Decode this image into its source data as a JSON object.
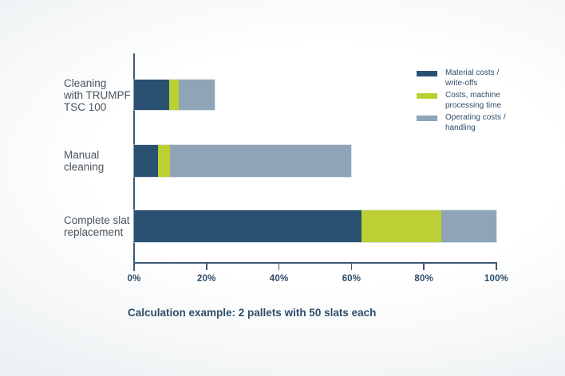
{
  "chart_data": {
    "type": "bar",
    "orientation": "horizontal-stacked",
    "unit": "%",
    "title": "",
    "caption": "Calculation example: 2 pallets with 50 slats each",
    "categories": [
      "Cleaning with TRUMPF TSC 100",
      "Manual cleaning",
      "Complete slat replacement"
    ],
    "category_lines": [
      [
        "Cleaning",
        "with TRUMPF",
        "TSC 100"
      ],
      [
        "Manual",
        "cleaning"
      ],
      [
        "Complete slat",
        "replacement"
      ]
    ],
    "series": [
      {
        "name": "Material costs / write-offs",
        "color": "#2b5172",
        "values": [
          9.7,
          6.6,
          62.8
        ]
      },
      {
        "name": "Costs, machine processing time",
        "color": "#bdd033",
        "values": [
          2.7,
          3.3,
          22.0
        ]
      },
      {
        "name": "Operating costs / handling",
        "color": "#8fa4b7",
        "values": [
          9.8,
          50.1,
          15.2
        ]
      }
    ],
    "totals": [
      22.2,
      60.0,
      100.0
    ],
    "xlim": [
      0,
      100
    ],
    "x_tick_values": [
      0,
      20,
      40,
      60,
      80,
      100
    ],
    "x_tick_labels": [
      "0%",
      "20%",
      "40%",
      "60%",
      "80%",
      "100%"
    ],
    "grid": false,
    "legend_position": "top-right"
  },
  "legend": {
    "items": [
      {
        "lines": [
          "Material costs /",
          "write-offs"
        ]
      },
      {
        "lines": [
          "Costs, machine",
          "processing time"
        ]
      },
      {
        "lines": [
          "Operating costs /",
          "handling"
        ]
      }
    ]
  },
  "palette": {
    "material_blue": "#2b5172",
    "machine_green": "#bdd033",
    "operating_gray": "#8fa4b7",
    "axis": "#3f5a74",
    "text_dark": "#2e4d6b",
    "label_gray": "#4a555f"
  }
}
